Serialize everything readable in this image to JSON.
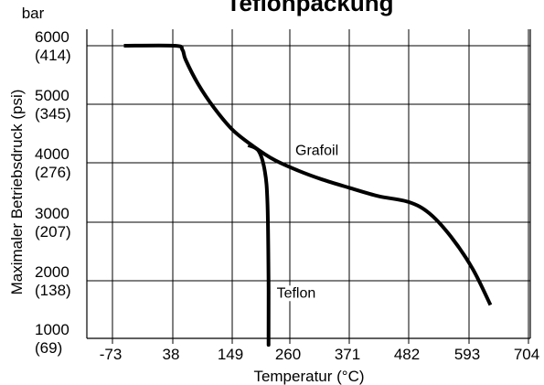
{
  "chart_data": {
    "type": "line",
    "title": "Teflonpackung",
    "xlabel": "Temperatur (°C)",
    "ylabel": "Maximaler Betriebsdruck (psi)",
    "y_unit_label": "bar",
    "xlim": [
      -73,
      704
    ],
    "ylim": [
      1000,
      6000
    ],
    "x_ticks": [
      -73,
      38,
      149,
      260,
      371,
      482,
      593,
      704
    ],
    "y_ticks": [
      {
        "value": 1000,
        "psi": "1000",
        "bar": "(69)"
      },
      {
        "value": 2000,
        "psi": "2000",
        "bar": "(138)"
      },
      {
        "value": 3000,
        "psi": "3000",
        "bar": "(207)"
      },
      {
        "value": 4000,
        "psi": "4000",
        "bar": "(276)"
      },
      {
        "value": 5000,
        "psi": "5000",
        "bar": "(345)"
      },
      {
        "value": 6000,
        "psi": "6000",
        "bar": "(414)"
      }
    ],
    "grid": true,
    "series": [
      {
        "name": "Grafoil",
        "label_at": [
          260,
          4130
        ],
        "points": [
          [
            -52,
            6000
          ],
          [
            42,
            6000
          ],
          [
            56,
            5930
          ],
          [
            62,
            5760
          ],
          [
            85,
            5350
          ],
          [
            115,
            4940
          ],
          [
            150,
            4560
          ],
          [
            190,
            4280
          ],
          [
            230,
            4050
          ],
          [
            275,
            3870
          ],
          [
            320,
            3720
          ],
          [
            371,
            3580
          ],
          [
            425,
            3440
          ],
          [
            482,
            3340
          ],
          [
            520,
            3150
          ],
          [
            560,
            2750
          ],
          [
            600,
            2200
          ],
          [
            633,
            1580
          ]
        ]
      },
      {
        "name": "Teflon",
        "label_at": [
          224,
          1710
        ],
        "points": [
          [
            180,
            4300
          ],
          [
            200,
            4200
          ],
          [
            212,
            3850
          ],
          [
            217,
            3300
          ],
          [
            219,
            2000
          ],
          [
            219,
            1000
          ],
          [
            219,
            900
          ]
        ]
      }
    ]
  }
}
